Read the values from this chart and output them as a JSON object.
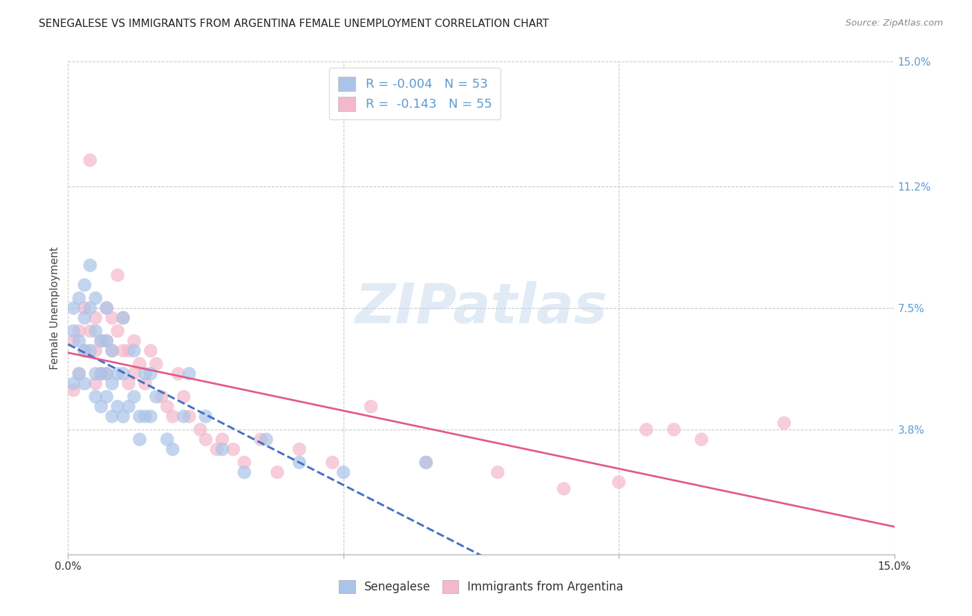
{
  "title": "SENEGALESE VS IMMIGRANTS FROM ARGENTINA FEMALE UNEMPLOYMENT CORRELATION CHART",
  "source": "Source: ZipAtlas.com",
  "ylabel": "Female Unemployment",
  "xmin": 0.0,
  "xmax": 0.15,
  "ymin": 0.0,
  "ymax": 0.15,
  "yticks": [
    0.0,
    0.038,
    0.075,
    0.112,
    0.15
  ],
  "ytick_labels": [
    "",
    "3.8%",
    "7.5%",
    "11.2%",
    "15.0%"
  ],
  "xticks": [
    0.0,
    0.05,
    0.1,
    0.15
  ],
  "xtick_labels": [
    "0.0%",
    "",
    "",
    "15.0%"
  ],
  "legend_line1": "R = -0.004   N = 53",
  "legend_line2": "R =  -0.143   N = 55",
  "legend_bottom": [
    "Senegalese",
    "Immigrants from Argentina"
  ],
  "watermark_text": "ZIPatlas",
  "blue_color": "#5b9bd5",
  "blue_scatter_color": "#aac4e8",
  "pink_scatter_color": "#f4b8cb",
  "blue_line_color": "#4472c4",
  "pink_line_color": "#e05a87",
  "grid_color": "#c8c8c8",
  "senegalese_x": [
    0.001,
    0.001,
    0.001,
    0.002,
    0.002,
    0.002,
    0.003,
    0.003,
    0.003,
    0.003,
    0.004,
    0.004,
    0.004,
    0.005,
    0.005,
    0.005,
    0.005,
    0.006,
    0.006,
    0.006,
    0.007,
    0.007,
    0.007,
    0.007,
    0.008,
    0.008,
    0.008,
    0.009,
    0.009,
    0.01,
    0.01,
    0.01,
    0.011,
    0.012,
    0.012,
    0.013,
    0.013,
    0.014,
    0.014,
    0.015,
    0.015,
    0.016,
    0.018,
    0.019,
    0.021,
    0.022,
    0.025,
    0.028,
    0.032,
    0.036,
    0.042,
    0.05,
    0.065
  ],
  "senegalese_y": [
    0.075,
    0.068,
    0.052,
    0.078,
    0.065,
    0.055,
    0.082,
    0.072,
    0.062,
    0.052,
    0.088,
    0.075,
    0.062,
    0.078,
    0.068,
    0.055,
    0.048,
    0.065,
    0.055,
    0.045,
    0.075,
    0.065,
    0.055,
    0.048,
    0.062,
    0.052,
    0.042,
    0.055,
    0.045,
    0.072,
    0.055,
    0.042,
    0.045,
    0.062,
    0.048,
    0.042,
    0.035,
    0.055,
    0.042,
    0.055,
    0.042,
    0.048,
    0.035,
    0.032,
    0.042,
    0.055,
    0.042,
    0.032,
    0.025,
    0.035,
    0.028,
    0.025,
    0.028
  ],
  "argentina_x": [
    0.001,
    0.001,
    0.002,
    0.002,
    0.003,
    0.003,
    0.004,
    0.004,
    0.005,
    0.005,
    0.005,
    0.006,
    0.006,
    0.007,
    0.007,
    0.007,
    0.008,
    0.008,
    0.009,
    0.009,
    0.01,
    0.01,
    0.011,
    0.011,
    0.012,
    0.012,
    0.013,
    0.014,
    0.015,
    0.016,
    0.017,
    0.018,
    0.019,
    0.02,
    0.021,
    0.022,
    0.024,
    0.025,
    0.027,
    0.028,
    0.03,
    0.032,
    0.035,
    0.038,
    0.042,
    0.048,
    0.055,
    0.065,
    0.078,
    0.09,
    0.1,
    0.105,
    0.11,
    0.115,
    0.13
  ],
  "argentina_y": [
    0.065,
    0.05,
    0.068,
    0.055,
    0.075,
    0.062,
    0.12,
    0.068,
    0.072,
    0.062,
    0.052,
    0.065,
    0.055,
    0.075,
    0.065,
    0.055,
    0.072,
    0.062,
    0.085,
    0.068,
    0.072,
    0.062,
    0.062,
    0.052,
    0.065,
    0.055,
    0.058,
    0.052,
    0.062,
    0.058,
    0.048,
    0.045,
    0.042,
    0.055,
    0.048,
    0.042,
    0.038,
    0.035,
    0.032,
    0.035,
    0.032,
    0.028,
    0.035,
    0.025,
    0.032,
    0.028,
    0.045,
    0.028,
    0.025,
    0.02,
    0.022,
    0.038,
    0.038,
    0.035,
    0.04
  ]
}
